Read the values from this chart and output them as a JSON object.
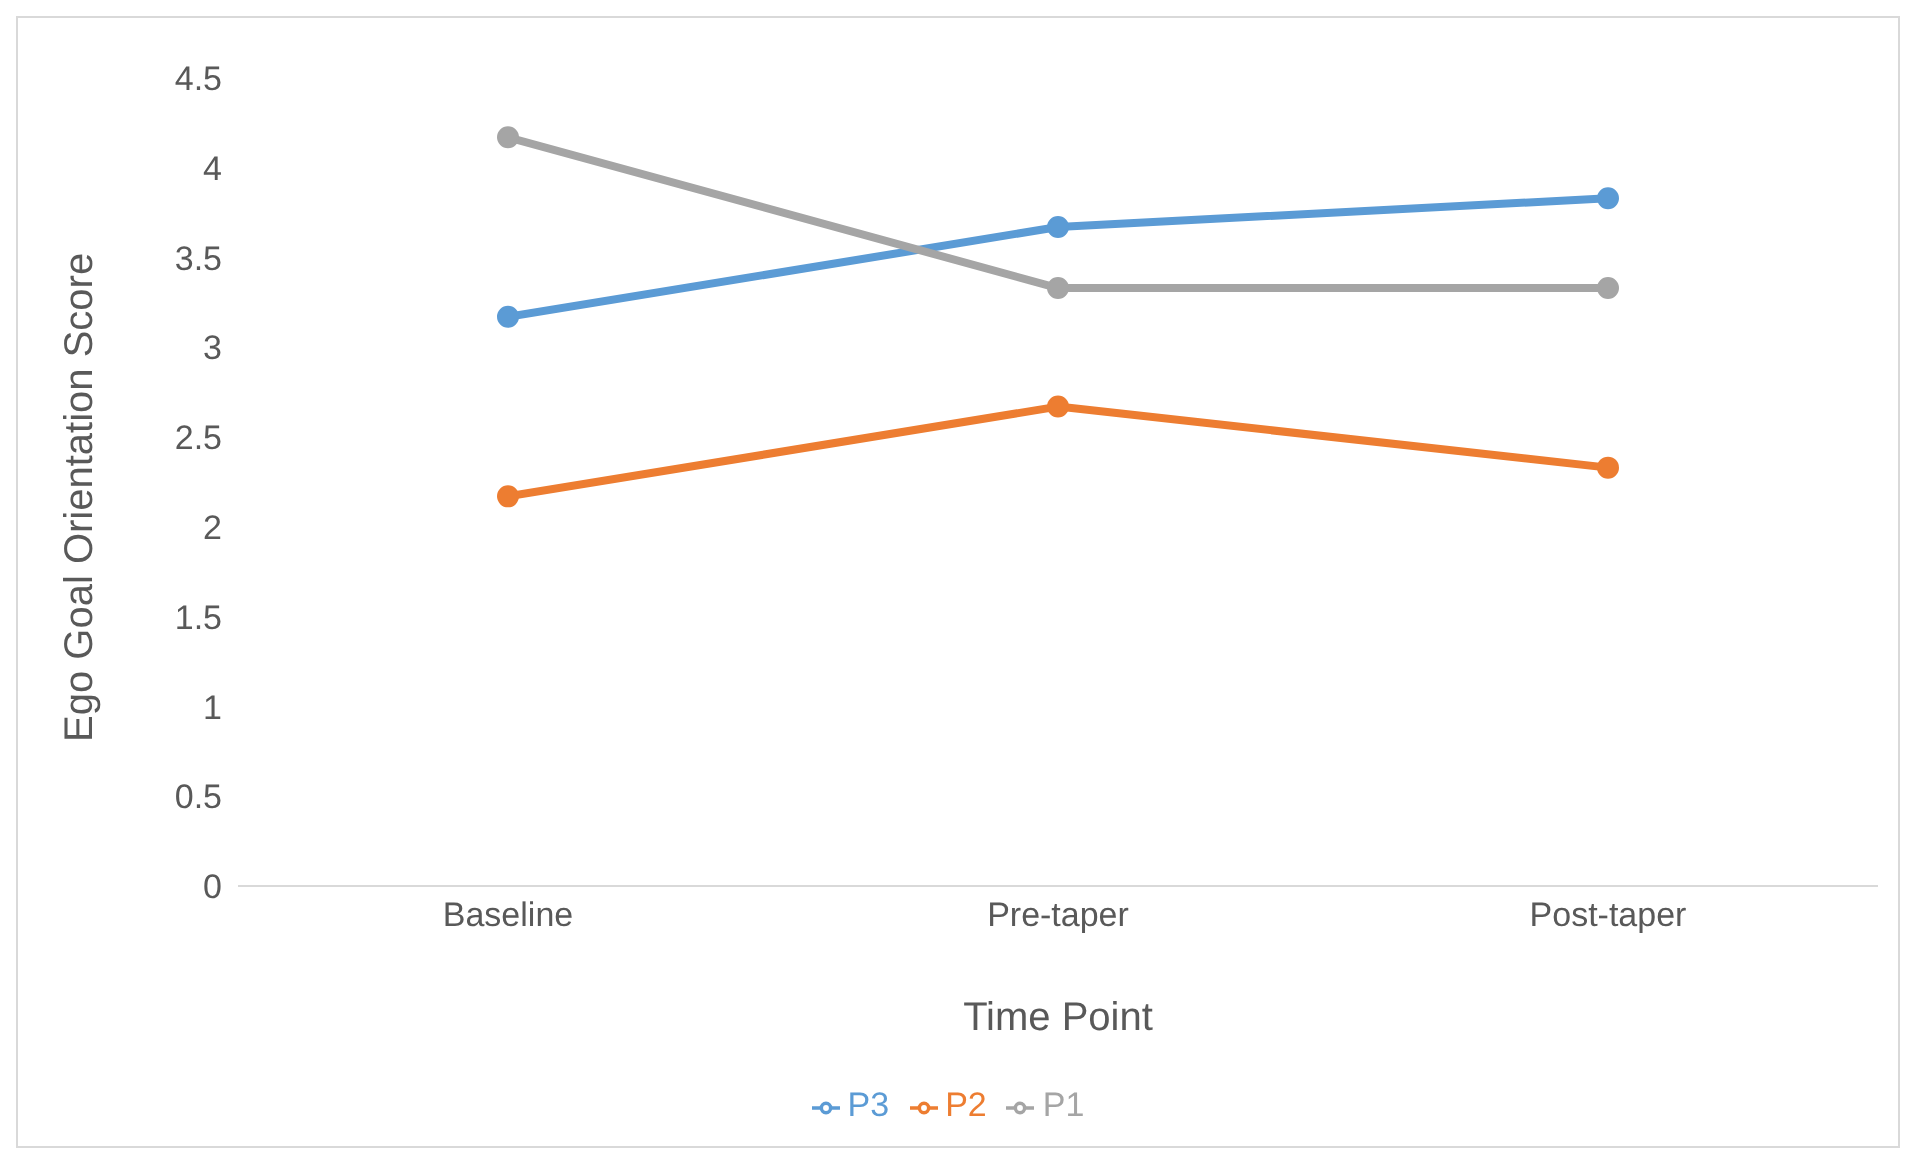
{
  "chart_data": {
    "type": "line",
    "xlabel": "Time Point",
    "ylabel": "Ego Goal Orientation Score",
    "categories": [
      "Baseline",
      "Pre-taper",
      "Post-taper"
    ],
    "series": [
      {
        "name": "P3",
        "color": "#5b9bd5",
        "values": [
          3.17,
          3.67,
          3.83
        ]
      },
      {
        "name": "P2",
        "color": "#ed7d31",
        "values": [
          2.17,
          2.67,
          2.33
        ]
      },
      {
        "name": "P1",
        "color": "#a5a5a5",
        "values": [
          4.17,
          3.33,
          3.33
        ]
      }
    ],
    "ylim": [
      0,
      4.5
    ],
    "yticks": [
      0,
      0.5,
      1,
      1.5,
      2,
      2.5,
      3,
      3.5,
      4,
      4.5
    ],
    "grid": false,
    "legend": "bottom",
    "marker": "circle",
    "line_style": "solid"
  }
}
